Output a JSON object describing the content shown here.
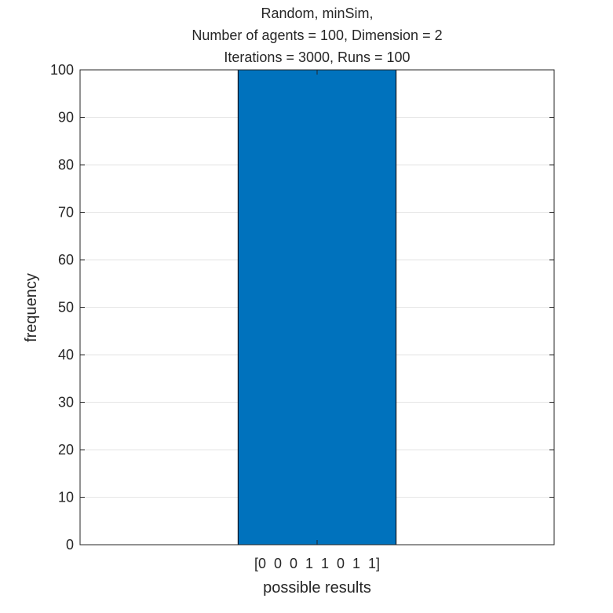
{
  "chart_data": {
    "type": "bar",
    "title_lines": [
      "Random, minSim,",
      "Number of agents = 100, Dimension = 2",
      "Iterations = 3000, Runs = 100"
    ],
    "xlabel": "possible results",
    "ylabel": "frequency",
    "categories": [
      "[0  0  0  1  1  0  1  1]"
    ],
    "values": [
      100
    ],
    "ylim": [
      0,
      100
    ],
    "yticks": [
      0,
      10,
      20,
      30,
      40,
      50,
      60,
      70,
      80,
      90,
      100
    ],
    "grid": "horizontal",
    "bar_color": "#0072bd"
  }
}
